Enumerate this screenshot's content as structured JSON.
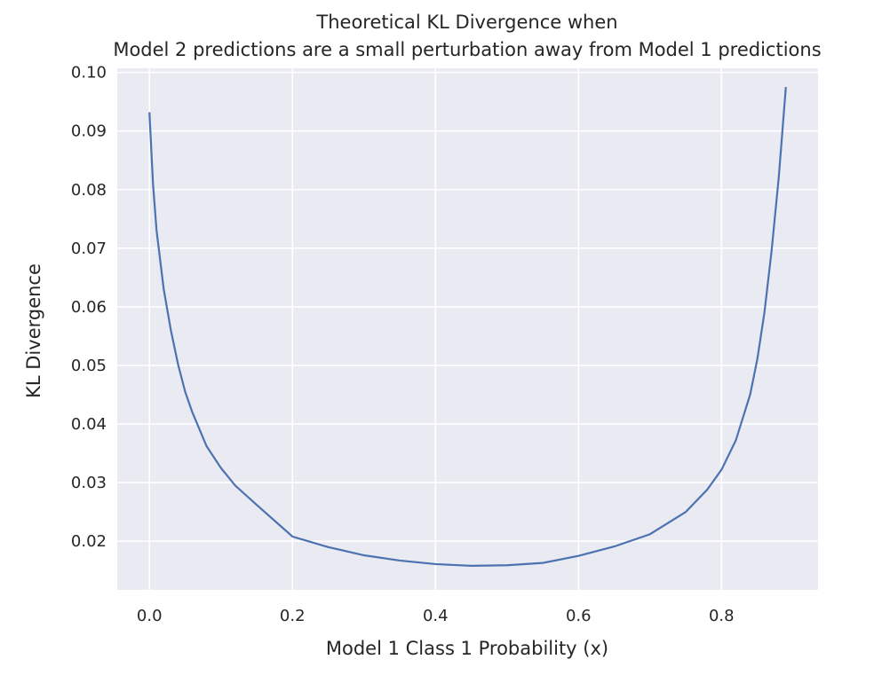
{
  "chart_data": {
    "type": "line",
    "title_lines": [
      "Theoretical KL Divergence when",
      "Model 2 predictions are a small perturbation away from Model 1 predictions"
    ],
    "xlabel": "Model 1 Class 1 Probability (x)",
    "ylabel": "KL Divergence",
    "xlim": [
      -0.045,
      0.935
    ],
    "ylim": [
      0.0117,
      0.1007
    ],
    "x_ticks": [
      0.0,
      0.2,
      0.4,
      0.6,
      0.8
    ],
    "x_tick_labels": [
      "0.0",
      "0.2",
      "0.4",
      "0.6",
      "0.8"
    ],
    "y_ticks": [
      0.02,
      0.03,
      0.04,
      0.05,
      0.06,
      0.07,
      0.08,
      0.09,
      0.1
    ],
    "y_tick_labels": [
      "0.02",
      "0.03",
      "0.04",
      "0.05",
      "0.06",
      "0.07",
      "0.08",
      "0.09",
      "0.10"
    ],
    "grid": true,
    "line_color": "#4c72b0",
    "background_color": "#eaeaf2",
    "series": [
      {
        "x": [
          0.0,
          0.005,
          0.01,
          0.02,
          0.03,
          0.04,
          0.05,
          0.06,
          0.08,
          0.1,
          0.12,
          0.15,
          0.2,
          0.25,
          0.3,
          0.35,
          0.4,
          0.45,
          0.5,
          0.55,
          0.6,
          0.65,
          0.7,
          0.75,
          0.78,
          0.8,
          0.82,
          0.84,
          0.85,
          0.86,
          0.87,
          0.88,
          0.89
        ],
        "y": [
          0.0932,
          0.081,
          0.073,
          0.063,
          0.056,
          0.0502,
          0.0455,
          0.042,
          0.0362,
          0.0325,
          0.0295,
          0.0262,
          0.0208,
          0.019,
          0.0176,
          0.0167,
          0.0161,
          0.0158,
          0.0159,
          0.0163,
          0.0175,
          0.0191,
          0.0212,
          0.025,
          0.0288,
          0.0322,
          0.0372,
          0.045,
          0.051,
          0.059,
          0.0695,
          0.082,
          0.0975
        ]
      }
    ]
  }
}
